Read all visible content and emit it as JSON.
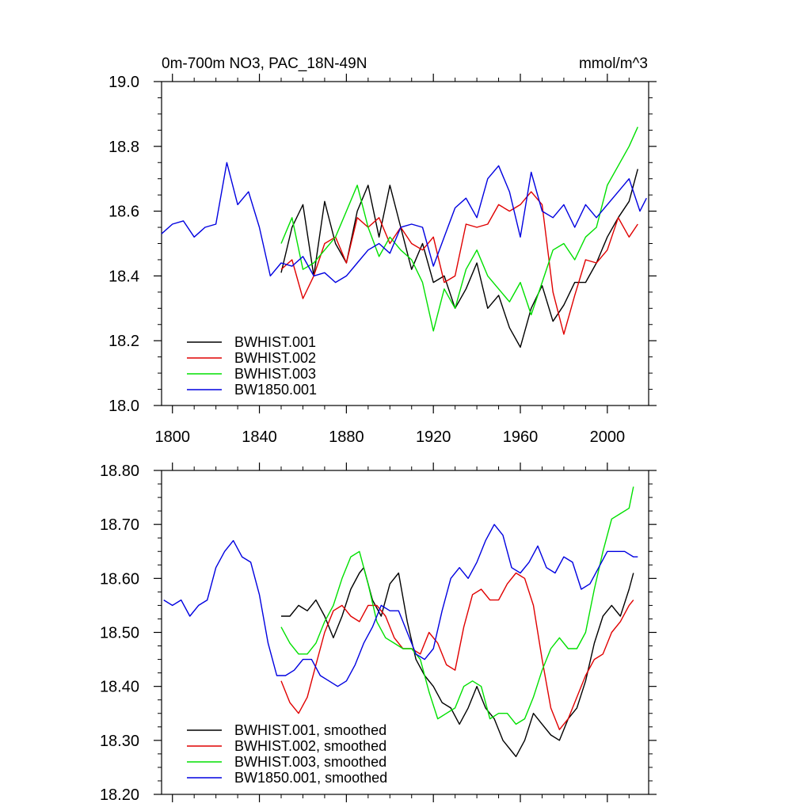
{
  "colors": {
    "series1": "#000000",
    "series2": "#e00000",
    "series3": "#00e000",
    "series4": "#0000e0"
  },
  "chart_data": [
    {
      "type": "line",
      "title": "0m-700m NO3, PAC_18N-49N",
      "units": "mmol/m^3",
      "xlim": [
        1795,
        2019
      ],
      "ylim": [
        18.0,
        19.0
      ],
      "xticks": [
        1800,
        1840,
        1880,
        1920,
        1960,
        2000
      ],
      "xtick_labels": [
        "1800",
        "1840",
        "1880",
        "1920",
        "1960",
        "2000"
      ],
      "yticks": [
        18.0,
        18.2,
        18.4,
        18.6,
        18.8,
        19.0
      ],
      "ytick_labels": [
        "18.0",
        "18.2",
        "18.4",
        "18.6",
        "18.8",
        "19.0"
      ],
      "series": [
        {
          "name": "BWHIST.001",
          "color": "#000000",
          "x": [
            1850,
            1855,
            1860,
            1865,
            1870,
            1875,
            1880,
            1885,
            1890,
            1895,
            1900,
            1905,
            1910,
            1915,
            1920,
            1925,
            1930,
            1935,
            1940,
            1945,
            1950,
            1955,
            1960,
            1965,
            1970,
            1975,
            1980,
            1985,
            1990,
            1995,
            2000,
            2005,
            2010,
            2014
          ],
          "values": [
            18.41,
            18.55,
            18.62,
            18.4,
            18.63,
            18.5,
            18.44,
            18.6,
            18.68,
            18.52,
            18.68,
            18.55,
            18.42,
            18.5,
            18.38,
            18.4,
            18.3,
            18.36,
            18.44,
            18.3,
            18.34,
            18.24,
            18.18,
            18.3,
            18.37,
            18.26,
            18.31,
            18.38,
            18.38,
            18.44,
            18.52,
            18.58,
            18.63,
            18.73
          ]
        },
        {
          "name": "BWHIST.002",
          "color": "#e00000",
          "x": [
            1850,
            1855,
            1860,
            1865,
            1870,
            1875,
            1880,
            1885,
            1890,
            1895,
            1900,
            1905,
            1910,
            1915,
            1920,
            1925,
            1930,
            1935,
            1940,
            1945,
            1950,
            1955,
            1960,
            1965,
            1970,
            1975,
            1980,
            1985,
            1990,
            1995,
            2000,
            2005,
            2010,
            2014
          ],
          "values": [
            18.42,
            18.45,
            18.33,
            18.4,
            18.5,
            18.52,
            18.44,
            18.58,
            18.55,
            18.58,
            18.5,
            18.55,
            18.5,
            18.48,
            18.52,
            18.38,
            18.4,
            18.56,
            18.55,
            18.56,
            18.62,
            18.6,
            18.62,
            18.66,
            18.62,
            18.35,
            18.22,
            18.34,
            18.45,
            18.44,
            18.48,
            18.58,
            18.52,
            18.56
          ]
        },
        {
          "name": "BWHIST.003",
          "color": "#00e000",
          "x": [
            1850,
            1855,
            1860,
            1865,
            1870,
            1875,
            1880,
            1885,
            1890,
            1895,
            1900,
            1905,
            1910,
            1915,
            1920,
            1925,
            1930,
            1935,
            1940,
            1945,
            1950,
            1955,
            1960,
            1965,
            1970,
            1975,
            1980,
            1985,
            1990,
            1995,
            2000,
            2005,
            2010,
            2014
          ],
          "values": [
            18.5,
            18.58,
            18.42,
            18.44,
            18.48,
            18.52,
            18.6,
            18.68,
            18.55,
            18.46,
            18.52,
            18.48,
            18.45,
            18.38,
            18.23,
            18.36,
            18.3,
            18.42,
            18.48,
            18.4,
            18.36,
            18.32,
            18.38,
            18.28,
            18.38,
            18.48,
            18.5,
            18.45,
            18.52,
            18.55,
            18.68,
            18.74,
            18.8,
            18.86
          ]
        },
        {
          "name": "BW1850.001",
          "color": "#0000e0",
          "x": [
            1795,
            1800,
            1805,
            1810,
            1815,
            1820,
            1825,
            1830,
            1835,
            1840,
            1845,
            1850,
            1855,
            1860,
            1865,
            1870,
            1875,
            1880,
            1885,
            1890,
            1895,
            1900,
            1905,
            1910,
            1915,
            1920,
            1925,
            1930,
            1935,
            1940,
            1945,
            1950,
            1955,
            1960,
            1965,
            1970,
            1975,
            1980,
            1985,
            1990,
            1995,
            2000,
            2005,
            2010,
            2015,
            2018
          ],
          "values": [
            18.53,
            18.56,
            18.57,
            18.52,
            18.55,
            18.56,
            18.75,
            18.62,
            18.66,
            18.55,
            18.4,
            18.44,
            18.43,
            18.46,
            18.4,
            18.41,
            18.38,
            18.4,
            18.44,
            18.48,
            18.5,
            18.47,
            18.55,
            18.56,
            18.55,
            18.43,
            18.52,
            18.61,
            18.64,
            18.58,
            18.7,
            18.74,
            18.66,
            18.52,
            18.72,
            18.6,
            18.58,
            18.62,
            18.55,
            18.62,
            18.58,
            18.62,
            18.66,
            18.7,
            18.6,
            18.64
          ]
        }
      ],
      "legend": {
        "placement": "bottom-left",
        "entries": [
          "BWHIST.001",
          "BWHIST.002",
          "BWHIST.003",
          "BW1850.001"
        ]
      }
    },
    {
      "type": "line",
      "title": "",
      "xlim": [
        1795,
        2019
      ],
      "ylim": [
        18.2,
        18.8
      ],
      "xticks": [
        1800,
        1840,
        1880,
        1920,
        1960,
        2000
      ],
      "yticks": [
        18.2,
        18.3,
        18.4,
        18.5,
        18.6,
        18.7,
        18.8
      ],
      "ytick_labels": [
        "18.20",
        "18.30",
        "18.40",
        "18.50",
        "18.60",
        "18.70",
        "18.80"
      ],
      "series": [
        {
          "name": "BWHIST.001, smoothed",
          "color": "#000000",
          "x": [
            1850,
            1854,
            1858,
            1862,
            1866,
            1870,
            1874,
            1878,
            1882,
            1886,
            1888,
            1892,
            1896,
            1900,
            1904,
            1908,
            1912,
            1916,
            1920,
            1924,
            1928,
            1932,
            1936,
            1940,
            1944,
            1948,
            1952,
            1956,
            1958,
            1962,
            1966,
            1970,
            1974,
            1978,
            1982,
            1986,
            1990,
            1994,
            1998,
            2002,
            2006,
            2010,
            2012
          ],
          "values": [
            18.53,
            18.53,
            18.55,
            18.54,
            18.56,
            18.53,
            18.49,
            18.53,
            18.58,
            18.61,
            18.62,
            18.56,
            18.53,
            18.59,
            18.61,
            18.52,
            18.45,
            18.42,
            18.4,
            18.37,
            18.36,
            18.33,
            18.36,
            18.4,
            18.36,
            18.34,
            18.3,
            18.28,
            18.27,
            18.3,
            18.35,
            18.33,
            18.31,
            18.3,
            18.34,
            18.36,
            18.41,
            18.48,
            18.53,
            18.55,
            18.53,
            18.58,
            18.61
          ]
        },
        {
          "name": "BWHIST.002, smoothed",
          "color": "#e00000",
          "x": [
            1850,
            1854,
            1858,
            1862,
            1866,
            1870,
            1874,
            1878,
            1882,
            1886,
            1890,
            1894,
            1898,
            1902,
            1906,
            1910,
            1914,
            1918,
            1922,
            1926,
            1930,
            1934,
            1938,
            1942,
            1946,
            1950,
            1954,
            1958,
            1962,
            1966,
            1970,
            1974,
            1978,
            1982,
            1986,
            1990,
            1994,
            1998,
            2002,
            2006,
            2010,
            2012
          ],
          "values": [
            18.41,
            18.37,
            18.35,
            18.38,
            18.44,
            18.5,
            18.54,
            18.55,
            18.53,
            18.52,
            18.55,
            18.55,
            18.53,
            18.49,
            18.47,
            18.47,
            18.46,
            18.5,
            18.48,
            18.44,
            18.43,
            18.51,
            18.57,
            18.58,
            18.56,
            18.56,
            18.59,
            18.61,
            18.6,
            18.55,
            18.45,
            18.36,
            18.32,
            18.34,
            18.38,
            18.42,
            18.45,
            18.46,
            18.5,
            18.52,
            18.55,
            18.56
          ]
        },
        {
          "name": "BWHIST.003, smoothed",
          "color": "#00e000",
          "x": [
            1850,
            1854,
            1858,
            1862,
            1866,
            1870,
            1874,
            1878,
            1882,
            1886,
            1890,
            1894,
            1898,
            1902,
            1906,
            1910,
            1914,
            1918,
            1922,
            1926,
            1930,
            1934,
            1938,
            1942,
            1946,
            1950,
            1954,
            1958,
            1962,
            1966,
            1970,
            1974,
            1978,
            1982,
            1986,
            1990,
            1994,
            1998,
            2002,
            2006,
            2010,
            2012
          ],
          "values": [
            18.51,
            18.48,
            18.46,
            18.46,
            18.48,
            18.52,
            18.55,
            18.6,
            18.64,
            18.65,
            18.59,
            18.52,
            18.49,
            18.48,
            18.47,
            18.47,
            18.45,
            18.39,
            18.34,
            18.35,
            18.36,
            18.4,
            18.41,
            18.4,
            18.34,
            18.35,
            18.35,
            18.33,
            18.34,
            18.38,
            18.43,
            18.47,
            18.49,
            18.47,
            18.47,
            18.5,
            18.58,
            18.65,
            18.71,
            18.72,
            18.73,
            18.77
          ]
        },
        {
          "name": "BW1850.001, smoothed",
          "color": "#0000e0",
          "x": [
            1796,
            1800,
            1804,
            1808,
            1812,
            1816,
            1820,
            1824,
            1828,
            1832,
            1836,
            1840,
            1844,
            1848,
            1852,
            1856,
            1860,
            1864,
            1868,
            1872,
            1876,
            1880,
            1884,
            1888,
            1892,
            1896,
            1900,
            1904,
            1908,
            1912,
            1916,
            1920,
            1924,
            1928,
            1932,
            1936,
            1940,
            1944,
            1948,
            1952,
            1956,
            1960,
            1964,
            1968,
            1972,
            1976,
            1980,
            1984,
            1988,
            1992,
            1996,
            2000,
            2004,
            2008,
            2012,
            2014
          ],
          "values": [
            18.56,
            18.55,
            18.56,
            18.53,
            18.55,
            18.56,
            18.62,
            18.65,
            18.67,
            18.64,
            18.63,
            18.57,
            18.48,
            18.42,
            18.42,
            18.43,
            18.45,
            18.45,
            18.42,
            18.41,
            18.4,
            18.41,
            18.44,
            18.48,
            18.51,
            18.55,
            18.54,
            18.54,
            18.5,
            18.46,
            18.45,
            18.47,
            18.54,
            18.6,
            18.62,
            18.6,
            18.63,
            18.67,
            18.7,
            18.68,
            18.62,
            18.61,
            18.63,
            18.66,
            18.62,
            18.61,
            18.64,
            18.63,
            18.58,
            18.59,
            18.62,
            18.65,
            18.65,
            18.65,
            18.64,
            18.64
          ]
        }
      ],
      "legend": {
        "placement": "bottom-left",
        "entries": [
          "BWHIST.001, smoothed",
          "BWHIST.002, smoothed",
          "BWHIST.003, smoothed",
          "BW1850.001, smoothed"
        ]
      }
    }
  ]
}
